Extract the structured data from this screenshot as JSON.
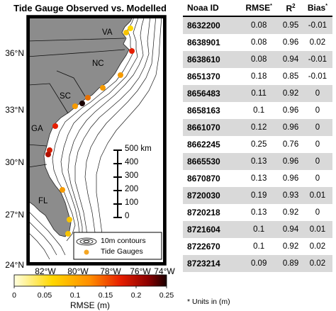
{
  "map": {
    "title": "Tide Gauge Observed vs. Modelled",
    "lat_labels": [
      "36°N",
      "33°N",
      "30°N",
      "27°N",
      "24°N"
    ],
    "lon_labels": [
      "82°W",
      "80°W",
      "78°W",
      "76°W",
      "74°W"
    ],
    "state_labels": [
      "VA",
      "NC",
      "SC",
      "GA",
      "FL"
    ],
    "scale_bar": {
      "unit_label": "500 km",
      "ticks": [
        "400",
        "300",
        "200",
        "100",
        "0"
      ]
    },
    "legend": {
      "contours_label": "10m contours",
      "gauges_label": "Tide Gauges"
    },
    "colors": {
      "land": "#8c8c8c",
      "ocean": "#ffffff",
      "gauge": "#f5a623"
    }
  },
  "colorbar": {
    "ticks": [
      "0",
      "0.05",
      "0.1",
      "0.15",
      "0.2",
      "0.25"
    ],
    "label": "RMSE (m)",
    "colors": [
      "#ffffe0",
      "#ffd700",
      "#ff8c00",
      "#e61e00",
      "#8b0000",
      "#1a0000"
    ]
  },
  "table": {
    "headers": {
      "id": "Noaa ID",
      "rmse": "RMSE",
      "rmse_sup": "*",
      "r2": "R",
      "r2_sup": "2",
      "bias": "Bias",
      "bias_sup": "*"
    },
    "rows": [
      {
        "id": "8632200",
        "rmse": "0.08",
        "r2": "0.95",
        "bias": "-0.01"
      },
      {
        "id": "8638901",
        "rmse": "0.08",
        "r2": "0.96",
        "bias": "0.02"
      },
      {
        "id": "8638610",
        "rmse": "0.08",
        "r2": "0.94",
        "bias": "-0.01"
      },
      {
        "id": "8651370",
        "rmse": "0.18",
        "r2": "0.85",
        "bias": "-0.01"
      },
      {
        "id": "8656483",
        "rmse": "0.11",
        "r2": "0.92",
        "bias": "0"
      },
      {
        "id": "8658163",
        "rmse": "0.1",
        "r2": "0.96",
        "bias": "0"
      },
      {
        "id": "8661070",
        "rmse": "0.12",
        "r2": "0.96",
        "bias": "0"
      },
      {
        "id": "8662245",
        "rmse": "0.25",
        "r2": "0.76",
        "bias": "0"
      },
      {
        "id": "8665530",
        "rmse": "0.13",
        "r2": "0.96",
        "bias": "0"
      },
      {
        "id": "8670870",
        "rmse": "0.13",
        "r2": "0.96",
        "bias": "0"
      },
      {
        "id": "8720030",
        "rmse": "0.19",
        "r2": "0.93",
        "bias": "0.01"
      },
      {
        "id": "8720218",
        "rmse": "0.13",
        "r2": "0.92",
        "bias": "0"
      },
      {
        "id": "8721604",
        "rmse": "0.1",
        "r2": "0.94",
        "bias": "0.01"
      },
      {
        "id": "8722670",
        "rmse": "0.1",
        "r2": "0.92",
        "bias": "0.02"
      },
      {
        "id": "8723214",
        "rmse": "0.09",
        "r2": "0.89",
        "bias": "0.02"
      }
    ],
    "footnote": "* Units in (m)"
  }
}
